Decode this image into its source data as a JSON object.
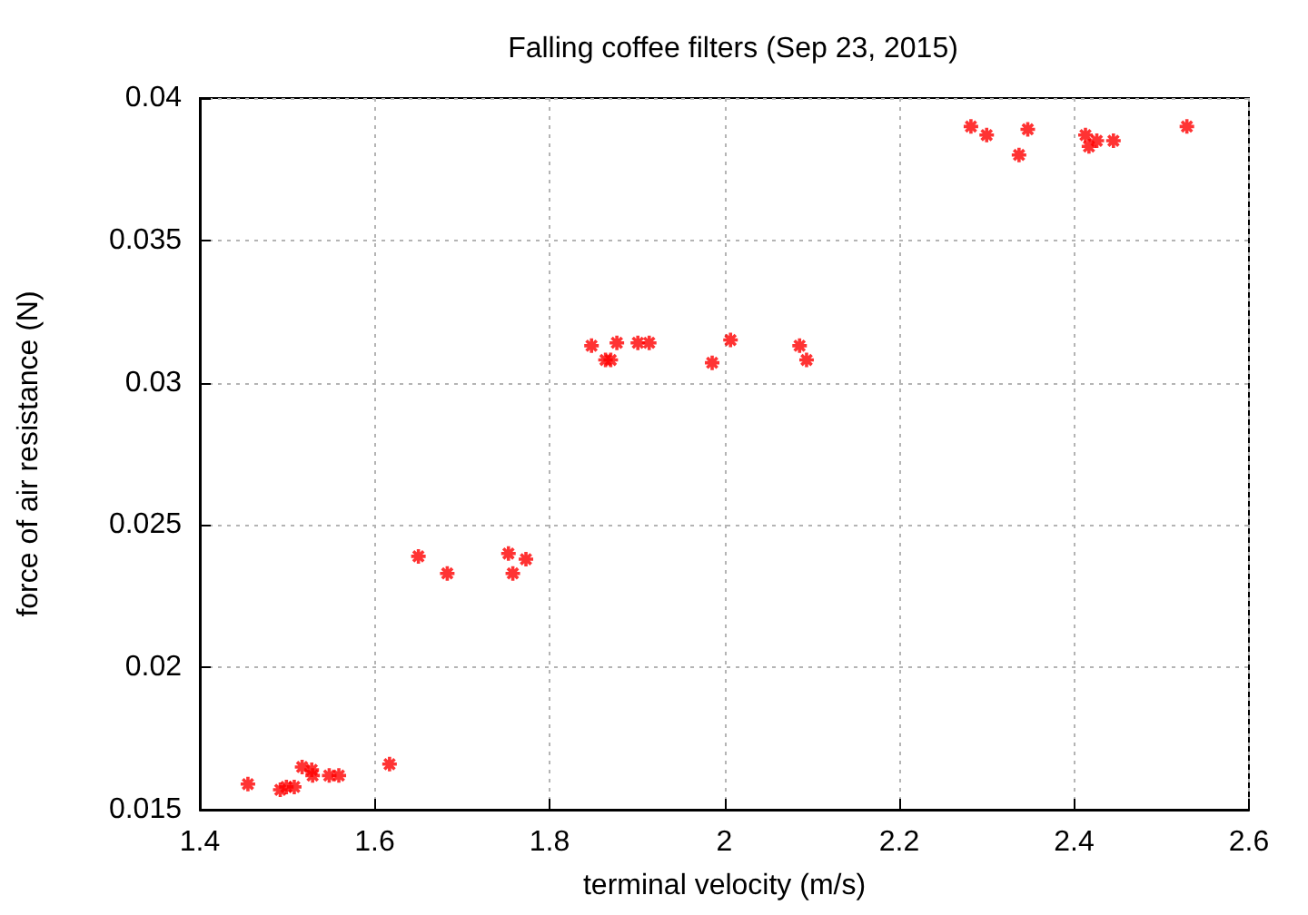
{
  "chart_data": {
    "type": "scatter",
    "title": "Falling coffee filters (Sep 23, 2015)",
    "xlabel": "terminal velocity (m/s)",
    "ylabel": "force of air resistance (N)",
    "x": [
      1.455,
      1.492,
      1.499,
      1.508,
      1.517,
      1.528,
      1.529,
      1.548,
      1.559,
      1.617,
      1.65,
      1.683,
      1.753,
      1.758,
      1.773,
      1.848,
      1.864,
      1.87,
      1.877,
      1.901,
      1.914,
      1.986,
      2.007,
      2.086,
      2.094,
      2.282,
      2.3,
      2.337,
      2.347,
      2.413,
      2.417,
      2.426,
      2.445,
      2.529
    ],
    "values": [
      0.0159,
      0.0157,
      0.0158,
      0.0158,
      0.0165,
      0.0164,
      0.0162,
      0.0162,
      0.0162,
      0.0166,
      0.0239,
      0.0233,
      0.024,
      0.0233,
      0.0238,
      0.0313,
      0.0308,
      0.0308,
      0.0314,
      0.0314,
      0.0314,
      0.0307,
      0.0315,
      0.0313,
      0.0308,
      0.039,
      0.0387,
      0.038,
      0.0389,
      0.0387,
      0.0383,
      0.0385,
      0.0385,
      0.039
    ],
    "color": "#ff0000",
    "xlim": [
      1.4,
      2.6
    ],
    "xticks": [
      1.4,
      1.6,
      1.8,
      2,
      2.2,
      2.4,
      2.6
    ],
    "ylim": [
      0.015,
      0.04
    ],
    "yticks": [
      0.015,
      0.02,
      0.025,
      0.03,
      0.035,
      0.04
    ],
    "grid": true,
    "marker": "cross"
  }
}
